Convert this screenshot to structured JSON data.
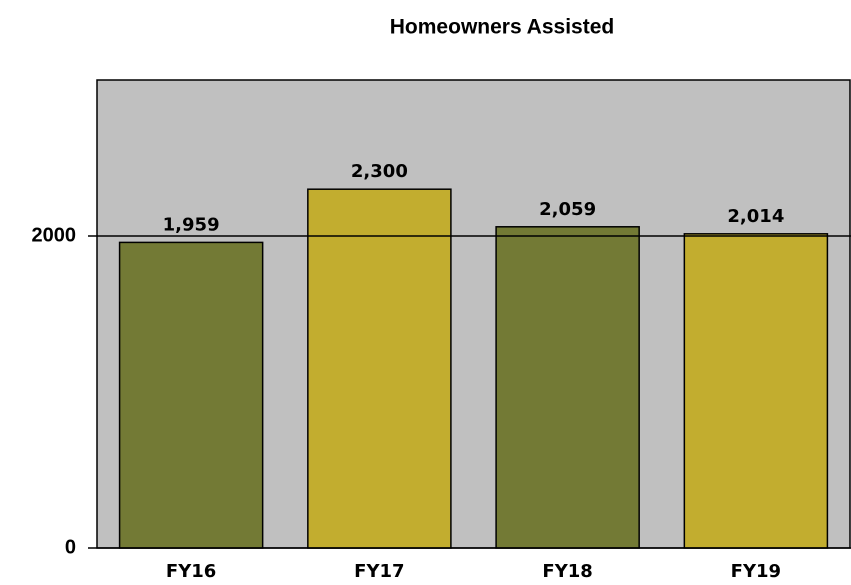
{
  "chart_data": {
    "type": "bar",
    "title": "Homeowners Assisted",
    "categories": [
      "FY16",
      "FY17",
      "FY18",
      "FY19"
    ],
    "values": [
      1959,
      2300,
      2059,
      2014
    ],
    "value_labels": [
      "1,959",
      "2,300",
      "2,059",
      "2,014"
    ],
    "colors": [
      "#737a35",
      "#c2ad2f",
      "#737a35",
      "#c2ad2f"
    ],
    "plot_background": "#c0c0c0",
    "ylim": [
      0,
      3000
    ],
    "yticks": [
      0,
      2000
    ],
    "grid": true
  }
}
